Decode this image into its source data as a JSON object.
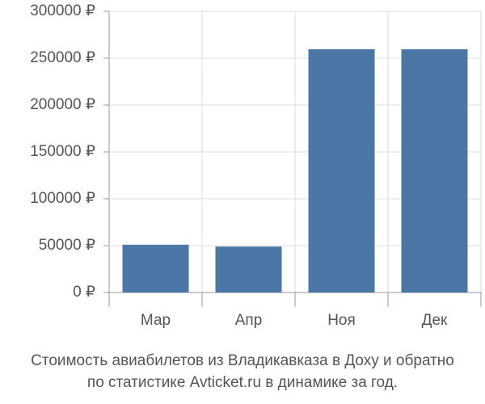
{
  "chart_data": {
    "type": "bar",
    "caption_lines": [
      "Стоимость авиабилетов из Владикавказа в Доху и обратно",
      "по статистике Avticket.ru в динамике за год."
    ],
    "categories": [
      "Мар",
      "Апр",
      "Ноя",
      "Дек"
    ],
    "values": [
      51000,
      49000,
      259500,
      259500
    ],
    "color": "#4b77a6",
    "ylim": [
      0,
      300000
    ],
    "yticks": [
      {
        "value": 0,
        "label": "0 ₽"
      },
      {
        "value": 50000,
        "label": "50000 ₽"
      },
      {
        "value": 100000,
        "label": "100000 ₽"
      },
      {
        "value": 150000,
        "label": "150000 ₽"
      },
      {
        "value": 200000,
        "label": "200000 ₽"
      },
      {
        "value": 250000,
        "label": "250000 ₽"
      },
      {
        "value": 300000,
        "label": "300000 ₽"
      }
    ],
    "grid": true
  }
}
